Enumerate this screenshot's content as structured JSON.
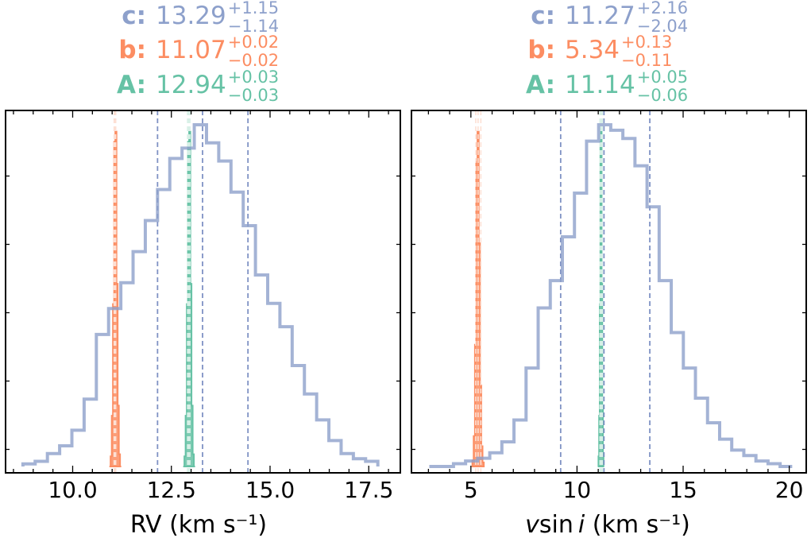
{
  "chart_data": [
    {
      "type": "histogram",
      "xlabel": "RV (km s⁻¹)",
      "xlim": [
        8.3,
        18.3
      ],
      "xticks": [
        10.0,
        12.5,
        15.0,
        17.5
      ],
      "xtick_labels": [
        "10.0",
        "12.5",
        "15.0",
        "17.5"
      ],
      "yticks": [],
      "legend": [
        {
          "name": "c",
          "label": "c:",
          "value": "13.29",
          "plus": "+1.15",
          "minus": "−1.14"
        },
        {
          "name": "b",
          "label": "b:",
          "value": "11.07",
          "plus": "+0.02",
          "minus": "−0.02"
        },
        {
          "name": "A",
          "label": "A:",
          "value": "12.94",
          "plus": "+0.03",
          "minus": "−0.03"
        }
      ],
      "series": [
        {
          "name": "c",
          "bins": [
            8.74,
            9.05,
            9.36,
            9.67,
            9.98,
            10.29,
            10.6,
            10.91,
            11.22,
            11.53,
            11.84,
            12.15,
            12.46,
            12.77,
            13.08,
            13.39,
            13.7,
            14.01,
            14.32,
            14.63,
            14.94,
            15.25,
            15.56,
            15.87,
            16.18,
            16.49,
            16.8,
            17.11,
            17.42,
            17.73
          ],
          "counts": [
            1,
            2,
            5,
            8,
            14,
            26,
            51,
            61,
            71,
            83,
            95,
            107,
            119,
            123,
            132,
            125,
            118,
            106,
            93,
            74,
            63,
            54,
            39,
            28,
            18,
            10,
            5,
            3,
            2
          ]
        },
        {
          "name": "b",
          "bins": [
            10.93,
            10.96,
            10.99,
            11.02,
            11.05,
            11.08,
            11.11,
            11.14,
            11.17,
            11.2,
            11.23
          ],
          "counts": [
            0,
            5,
            25,
            80,
            160,
            165,
            90,
            30,
            6,
            0
          ]
        },
        {
          "name": "A",
          "bins": [
            12.8,
            12.83,
            12.86,
            12.89,
            12.92,
            12.95,
            12.98,
            13.01,
            13.04,
            13.07,
            13.1
          ],
          "counts": [
            0,
            5,
            25,
            80,
            160,
            165,
            90,
            30,
            6,
            0
          ]
        }
      ],
      "vlines": [
        {
          "series": "c",
          "values": [
            12.15,
            13.29,
            14.44
          ]
        },
        {
          "series": "b",
          "values": [
            11.05,
            11.07,
            11.09
          ]
        },
        {
          "series": "A",
          "values": [
            12.91,
            12.94,
            12.97
          ]
        }
      ]
    },
    {
      "type": "histogram",
      "xlabel_prefix": "v",
      "xlabel_mid": "sin ",
      "xlabel_italic": "i",
      "xlabel_suffix": " (km s⁻¹)",
      "xlim": [
        2.2,
        20.8
      ],
      "xticks": [
        5,
        10,
        15,
        20
      ],
      "xtick_labels": [
        "5",
        "10",
        "15",
        "20"
      ],
      "yticks": [],
      "legend": [
        {
          "name": "c",
          "label": "c:",
          "value": "11.27",
          "plus": "+2.16",
          "minus": "−2.04"
        },
        {
          "name": "b",
          "label": "b:",
          "value": "5.34",
          "plus": "+0.13",
          "minus": "−0.11"
        },
        {
          "name": "A",
          "label": "A:",
          "value": "11.14",
          "plus": "+0.05",
          "minus": "−0.06"
        }
      ],
      "series": [
        {
          "name": "c",
          "bins": [
            3.04,
            3.61,
            4.18,
            4.75,
            5.32,
            5.89,
            6.46,
            7.03,
            7.6,
            8.17,
            8.74,
            9.31,
            9.88,
            10.45,
            11.02,
            11.59,
            12.16,
            12.73,
            13.3,
            13.87,
            14.44,
            15.01,
            15.58,
            16.15,
            16.72,
            17.29,
            17.86,
            18.43,
            19.0,
            19.57,
            20.14
          ],
          "counts": [
            0,
            0,
            1,
            2,
            3,
            5,
            9,
            17,
            36,
            58,
            68,
            84,
            100,
            119,
            125,
            123,
            120,
            110,
            95,
            68,
            49,
            36,
            25,
            16,
            10,
            6,
            4,
            2,
            1,
            0
          ]
        },
        {
          "name": "b",
          "bins": [
            5.07,
            5.13,
            5.19,
            5.25,
            5.31,
            5.37,
            5.43,
            5.49,
            5.55,
            5.61
          ],
          "counts": [
            3,
            15,
            60,
            150,
            165,
            110,
            40,
            10,
            2
          ]
        },
        {
          "name": "A",
          "bins": [
            10.98,
            11.01,
            11.04,
            11.07,
            11.1,
            11.13,
            11.16,
            11.19,
            11.22,
            11.25,
            11.28
          ],
          "counts": [
            0,
            5,
            25,
            80,
            160,
            165,
            90,
            30,
            6,
            0
          ]
        }
      ],
      "vlines": [
        {
          "series": "c",
          "values": [
            9.23,
            11.27,
            13.43
          ]
        },
        {
          "series": "b",
          "values": [
            5.23,
            5.34,
            5.47
          ]
        },
        {
          "series": "A",
          "values": [
            11.08,
            11.14,
            11.19
          ]
        }
      ]
    }
  ],
  "colors": {
    "c": "#8da0cb",
    "b": "#fc8d62",
    "A": "#66c2a5",
    "axis": "#000000"
  }
}
